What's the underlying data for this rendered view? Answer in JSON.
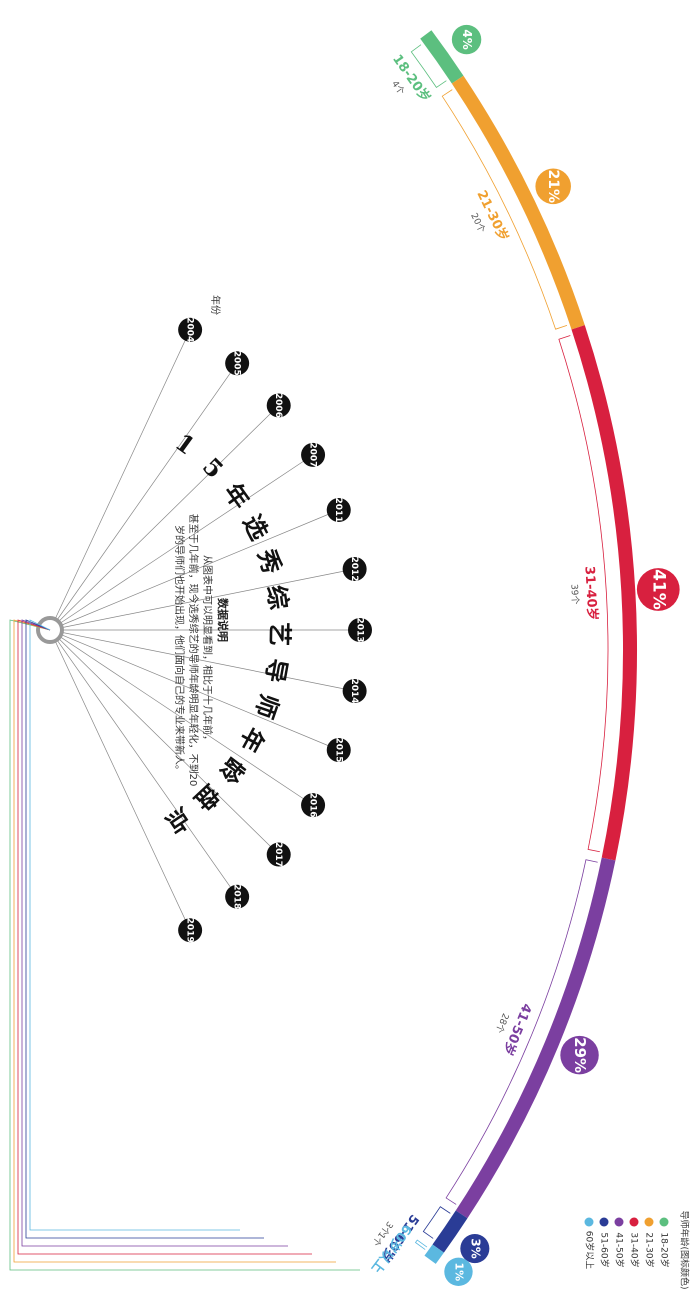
{
  "chart_data": {
    "type": "arc",
    "title": "15年选秀综艺导师年龄盘点",
    "legend_title": "导师年龄(图标颜色)",
    "categories": [
      "18-20岁",
      "21-30岁",
      "31-40岁",
      "41-50岁",
      "51-60岁",
      "60岁以上"
    ],
    "colors": [
      "#5cbf7f",
      "#f0a030",
      "#d8203f",
      "#7b3fa0",
      "#2a3c96",
      "#5bb8e0"
    ],
    "values": [
      4,
      20,
      39,
      28,
      3,
      1
    ],
    "value_labels": [
      "4个",
      "20个",
      "39个",
      "28个",
      "3个",
      "1个"
    ],
    "shares": [
      4,
      21,
      41,
      29,
      3,
      1
    ],
    "share_labels": [
      "4%",
      "21%",
      "41%",
      "29%",
      "3%",
      "1%"
    ],
    "year_axis_label": "年份",
    "years": [
      "2004",
      "2005",
      "2006",
      "2007",
      "2011",
      "2012",
      "2013",
      "2014",
      "2015",
      "2016",
      "2017",
      "2018",
      "2019"
    ],
    "note_title": "数据说明",
    "note_lines": [
      "从图表中可以明显看到，相比于十几年前，",
      "甚至于几年前，现今选秀综艺的导师年龄明显年轻化，不到20",
      "岁的导师们也开始出现，他们面向自己的专业来带新人。"
    ]
  }
}
